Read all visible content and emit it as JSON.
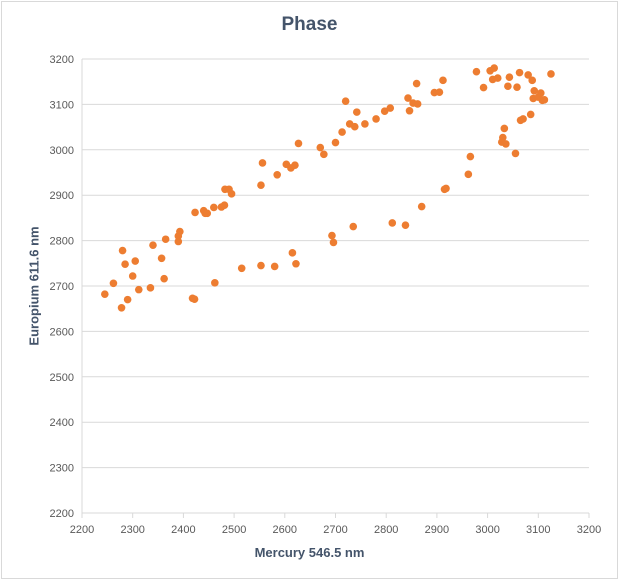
{
  "chart_data": {
    "type": "scatter",
    "title": "Phase",
    "xlabel": "Mercury 546.5 nm",
    "ylabel": "Europium 611.6 nm",
    "xlim": [
      2200,
      3200
    ],
    "ylim": [
      2200,
      3200
    ],
    "x_ticks": [
      2200,
      2300,
      2400,
      2500,
      2600,
      2700,
      2800,
      2900,
      3000,
      3100,
      3200
    ],
    "y_ticks": [
      2200,
      2300,
      2400,
      2500,
      2600,
      2700,
      2800,
      2900,
      3000,
      3100,
      3200
    ],
    "grid": "horizontal",
    "marker_color": "#ed7d31",
    "axis_color": "#d9d9d9",
    "series": [
      {
        "name": "Phase",
        "points": [
          [
            2245,
            2682
          ],
          [
            2262,
            2706
          ],
          [
            2278,
            2652
          ],
          [
            2280,
            2778
          ],
          [
            2285,
            2748
          ],
          [
            2290,
            2670
          ],
          [
            2300,
            2722
          ],
          [
            2305,
            2755
          ],
          [
            2312,
            2692
          ],
          [
            2335,
            2696
          ],
          [
            2340,
            2790
          ],
          [
            2357,
            2761
          ],
          [
            2362,
            2716
          ],
          [
            2365,
            2803
          ],
          [
            2390,
            2810
          ],
          [
            2390,
            2798
          ],
          [
            2393,
            2820
          ],
          [
            2418,
            2673
          ],
          [
            2422,
            2671
          ],
          [
            2423,
            2862
          ],
          [
            2440,
            2866
          ],
          [
            2443,
            2860
          ],
          [
            2447,
            2860
          ],
          [
            2460,
            2873
          ],
          [
            2462,
            2707
          ],
          [
            2475,
            2874
          ],
          [
            2481,
            2878
          ],
          [
            2482,
            2913
          ],
          [
            2490,
            2913
          ],
          [
            2495,
            2903
          ],
          [
            2515,
            2739
          ],
          [
            2553,
            2745
          ],
          [
            2553,
            2922
          ],
          [
            2556,
            2971
          ],
          [
            2580,
            2743
          ],
          [
            2585,
            2945
          ],
          [
            2603,
            2968
          ],
          [
            2612,
            2960
          ],
          [
            2615,
            2773
          ],
          [
            2620,
            2966
          ],
          [
            2622,
            2749
          ],
          [
            2627,
            3014
          ],
          [
            2670,
            3005
          ],
          [
            2677,
            2990
          ],
          [
            2693,
            2811
          ],
          [
            2696,
            2796
          ],
          [
            2700,
            3016
          ],
          [
            2713,
            3039
          ],
          [
            2720,
            3107
          ],
          [
            2728,
            3057
          ],
          [
            2735,
            2831
          ],
          [
            2738,
            3051
          ],
          [
            2742,
            3083
          ],
          [
            2758,
            3057
          ],
          [
            2780,
            3068
          ],
          [
            2797,
            3085
          ],
          [
            2808,
            3092
          ],
          [
            2812,
            2839
          ],
          [
            2838,
            2834
          ],
          [
            2843,
            3114
          ],
          [
            2846,
            3086
          ],
          [
            2853,
            3103
          ],
          [
            2860,
            3146
          ],
          [
            2862,
            3101
          ],
          [
            2870,
            2875
          ],
          [
            2895,
            3126
          ],
          [
            2905,
            3127
          ],
          [
            2912,
            3153
          ],
          [
            2915,
            2913
          ],
          [
            2918,
            2915
          ],
          [
            2962,
            2946
          ],
          [
            2966,
            2985
          ],
          [
            2978,
            3172
          ],
          [
            2992,
            3137
          ],
          [
            3005,
            3174
          ],
          [
            3010,
            3155
          ],
          [
            3013,
            3180
          ],
          [
            3020,
            3158
          ],
          [
            3028,
            3017
          ],
          [
            3030,
            3027
          ],
          [
            3033,
            3047
          ],
          [
            3036,
            3013
          ],
          [
            3040,
            3140
          ],
          [
            3043,
            3160
          ],
          [
            3055,
            2992
          ],
          [
            3058,
            3138
          ],
          [
            3063,
            3170
          ],
          [
            3065,
            3065
          ],
          [
            3070,
            3068
          ],
          [
            3080,
            3165
          ],
          [
            3085,
            3078
          ],
          [
            3088,
            3153
          ],
          [
            3090,
            3113
          ],
          [
            3092,
            3130
          ],
          [
            3100,
            3116
          ],
          [
            3105,
            3125
          ],
          [
            3108,
            3109
          ],
          [
            3112,
            3110
          ],
          [
            3125,
            3167
          ]
        ]
      }
    ]
  }
}
